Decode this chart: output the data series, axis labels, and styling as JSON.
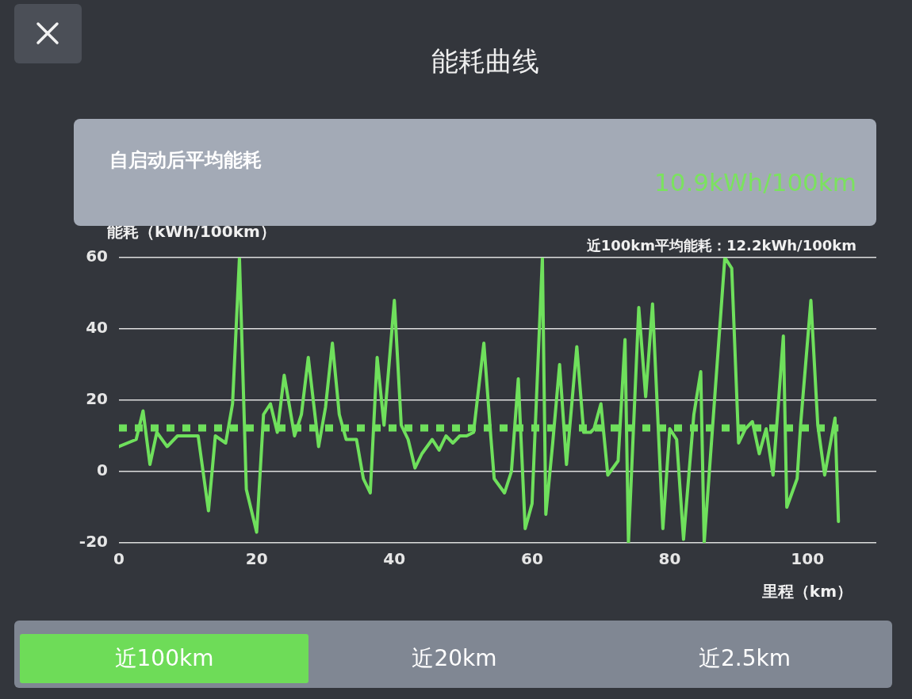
{
  "chart_data": {
    "type": "line",
    "title": "能耗曲线",
    "xlabel": "里程（km）",
    "ylabel": "能耗（kWh/100km）",
    "annotations": [
      "自启动后平均能耗",
      "10.9kWh/100km",
      "近100km平均能耗：12.2kWh/100km",
      "近100km",
      "近20km",
      "近2.5km"
    ],
    "x": [
      0,
      2.5,
      3.5,
      4.5,
      5.5,
      7,
      8.5,
      10.5,
      11.5,
      13,
      14,
      15.5,
      16.5,
      17.5,
      18.5,
      20,
      21,
      22,
      23,
      24,
      25.5,
      26.5,
      27.5,
      29,
      30,
      31,
      32,
      33,
      34.5,
      35.5,
      36.5,
      37.5,
      38.5,
      40,
      41,
      42,
      43,
      44,
      45.5,
      46.5,
      47.5,
      48.5,
      49.5,
      50.5,
      51.5,
      53,
      54,
      54.5,
      56,
      57,
      58,
      59,
      60,
      61.5,
      62,
      63,
      64,
      65,
      66.5,
      67.5,
      68.5,
      69,
      70,
      71,
      72.5,
      73.5,
      74,
      75.5,
      76.5,
      77.5,
      79,
      80,
      81,
      82,
      83.5,
      84.5,
      85,
      88,
      89,
      90,
      91,
      92,
      93,
      94,
      95,
      96.5,
      97,
      98.5,
      99,
      100.5,
      101.5,
      102.5,
      104,
      104.5
    ],
    "series": [
      {
        "color": "#6fe05c",
        "values": [
          7,
          9,
          17,
          2,
          11,
          7,
          10,
          10,
          10,
          -11,
          10,
          8,
          19,
          60,
          -5,
          -17,
          16,
          19,
          11,
          27,
          10,
          16,
          32,
          7,
          18,
          36,
          16,
          9,
          9,
          -2,
          -6,
          32,
          13,
          48,
          13,
          9,
          1,
          5,
          9,
          6,
          10,
          8,
          10,
          10,
          11,
          36,
          10,
          -2,
          -6,
          0,
          26,
          -16,
          -9,
          60,
          -12,
          8,
          30,
          2,
          35,
          11,
          11,
          12,
          19,
          -1,
          3,
          37,
          -20,
          46,
          21,
          47,
          -16,
          12,
          9,
          -19,
          16,
          28,
          -20,
          60,
          57,
          8,
          12,
          14,
          5,
          12,
          -1,
          38,
          -10,
          -2,
          13,
          48,
          13,
          -1,
          15,
          -14
        ]
      }
    ],
    "xlim": [
      0,
      110
    ],
    "xticks": [
      0,
      20,
      40,
      60,
      80,
      100
    ],
    "ylim": [
      -20,
      60
    ],
    "yticks": [
      -20,
      0,
      20,
      40,
      60
    ],
    "ref_lines": [
      {
        "axis": "y",
        "value": 12.2,
        "color": "#6fe05c",
        "line_style": "dashed"
      }
    ],
    "grid": "y"
  }
}
